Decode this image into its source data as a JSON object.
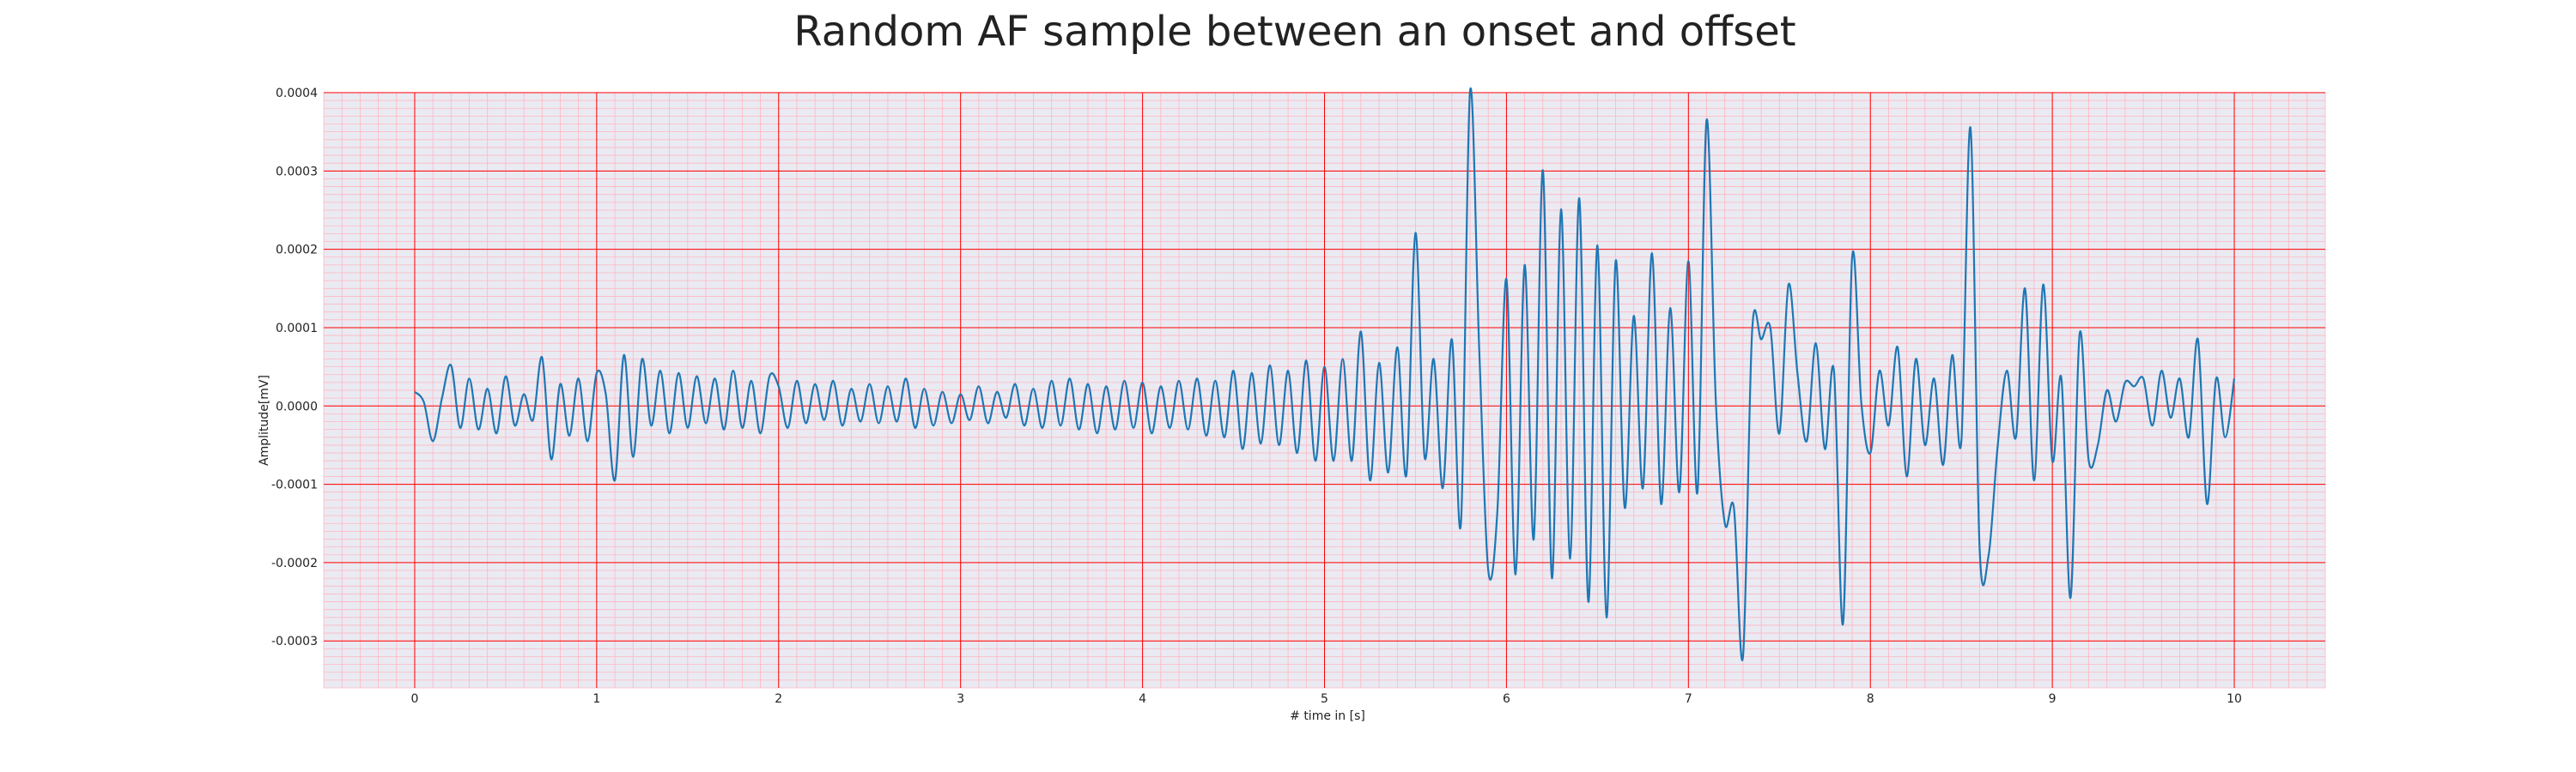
{
  "chart_data": {
    "type": "line",
    "title": "Random AF sample between an onset and offset",
    "xlabel": "# time in [s]",
    "ylabel": "Amplitude[mV]",
    "xlim": [
      -0.5,
      10.5
    ],
    "ylim": [
      -0.00036,
      0.0004
    ],
    "x_ticks": [
      0,
      1,
      2,
      3,
      4,
      5,
      6,
      7,
      8,
      9,
      10
    ],
    "x_tick_labels": [
      "0",
      "1",
      "2",
      "3",
      "4",
      "5",
      "6",
      "7",
      "8",
      "9",
      "10"
    ],
    "y_ticks": [
      0.0004,
      0.0003,
      0.0002,
      0.0001,
      0.0,
      -0.0001,
      -0.0002,
      -0.0003
    ],
    "y_tick_labels": [
      "0.0004",
      "0.0003",
      "0.0002",
      "0.0001",
      "0.0000",
      "-0.0001",
      "-0.0002",
      "-0.0003"
    ],
    "grid": true,
    "minor_grid": true,
    "colors": {
      "plot_background": "#eaeaf2",
      "major_grid": "#ff0000",
      "minor_grid": "#ffb6c1",
      "line": "#1f77b4"
    },
    "series": [
      {
        "x": [
          0.0,
          0.05,
          0.1,
          0.15,
          0.2,
          0.25,
          0.3,
          0.35,
          0.4,
          0.45,
          0.5,
          0.55,
          0.6,
          0.65,
          0.7,
          0.75,
          0.8,
          0.85,
          0.9,
          0.95,
          1.0,
          1.05,
          1.1,
          1.15,
          1.2,
          1.25,
          1.3,
          1.35,
          1.4,
          1.45,
          1.5,
          1.55,
          1.6,
          1.65,
          1.7,
          1.75,
          1.8,
          1.85,
          1.9,
          1.95,
          2.0,
          2.05,
          2.1,
          2.15,
          2.2,
          2.25,
          2.3,
          2.35,
          2.4,
          2.45,
          2.5,
          2.55,
          2.6,
          2.65,
          2.7,
          2.75,
          2.8,
          2.85,
          2.9,
          2.95,
          3.0,
          3.05,
          3.1,
          3.15,
          3.2,
          3.25,
          3.3,
          3.35,
          3.4,
          3.45,
          3.5,
          3.55,
          3.6,
          3.65,
          3.7,
          3.75,
          3.8,
          3.85,
          3.9,
          3.95,
          4.0,
          4.05,
          4.1,
          4.15,
          4.2,
          4.25,
          4.3,
          4.35,
          4.4,
          4.45,
          4.5,
          4.55,
          4.6,
          4.65,
          4.7,
          4.75,
          4.8,
          4.85,
          4.9,
          4.95,
          5.0,
          5.05,
          5.1,
          5.15,
          5.2,
          5.25,
          5.3,
          5.35,
          5.4,
          5.45,
          5.5,
          5.55,
          5.6,
          5.65,
          5.7,
          5.75,
          5.8,
          5.85,
          5.9,
          5.95,
          6.0,
          6.05,
          6.1,
          6.15,
          6.2,
          6.25,
          6.3,
          6.35,
          6.4,
          6.45,
          6.5,
          6.55,
          6.6,
          6.65,
          6.7,
          6.75,
          6.8,
          6.85,
          6.9,
          6.95,
          7.0,
          7.05,
          7.1,
          7.15,
          7.2,
          7.25,
          7.3,
          7.35,
          7.4,
          7.45,
          7.5,
          7.55,
          7.6,
          7.65,
          7.7,
          7.75,
          7.8,
          7.85,
          7.9,
          7.95,
          8.0,
          8.05,
          8.1,
          8.15,
          8.2,
          8.25,
          8.3,
          8.35,
          8.4,
          8.45,
          8.5,
          8.55,
          8.6,
          8.65,
          8.7,
          8.75,
          8.8,
          8.85,
          8.9,
          8.95,
          9.0,
          9.05,
          9.1,
          9.15,
          9.2,
          9.25,
          9.3,
          9.35,
          9.4,
          9.45,
          9.5,
          9.55,
          9.6,
          9.65,
          9.7,
          9.75,
          9.8,
          9.85,
          9.9,
          9.95,
          10.0
        ],
        "y": [
          1.8e-05,
          5e-06,
          -4.5e-05,
          1e-05,
          5.2e-05,
          -2.8e-05,
          3.5e-05,
          -3e-05,
          2.2e-05,
          -3.5e-05,
          3.8e-05,
          -2.5e-05,
          1.5e-05,
          -1.8e-05,
          6.2e-05,
          -6.8e-05,
          2.8e-05,
          -3.8e-05,
          3.5e-05,
          -4.5e-05,
          4.2e-05,
          1.5e-05,
          -9.5e-05,
          6.5e-05,
          -6.5e-05,
          6e-05,
          -2.5e-05,
          4.5e-05,
          -3.5e-05,
          4.2e-05,
          -2.8e-05,
          3.8e-05,
          -2.2e-05,
          3.5e-05,
          -3e-05,
          4.5e-05,
          -2.8e-05,
          3.2e-05,
          -3.5e-05,
          3.8e-05,
          2.5e-05,
          -2.8e-05,
          3.2e-05,
          -2.2e-05,
          2.8e-05,
          -1.8e-05,
          3.2e-05,
          -2.5e-05,
          2.2e-05,
          -2e-05,
          2.8e-05,
          -2.2e-05,
          2.5e-05,
          -2e-05,
          3.5e-05,
          -2.8e-05,
          2.2e-05,
          -2.5e-05,
          1.8e-05,
          -2.2e-05,
          1.5e-05,
          -1.8e-05,
          2.5e-05,
          -2.2e-05,
          1.8e-05,
          -1.5e-05,
          2.8e-05,
          -2.5e-05,
          2.2e-05,
          -2.8e-05,
          3.2e-05,
          -2.5e-05,
          3.5e-05,
          -3e-05,
          2.8e-05,
          -3.5e-05,
          2.5e-05,
          -3e-05,
          3.2e-05,
          -2.8e-05,
          3e-05,
          -3.5e-05,
          2.5e-05,
          -2.8e-05,
          3.2e-05,
          -3e-05,
          3.5e-05,
          -3.8e-05,
          3.2e-05,
          -4e-05,
          4.5e-05,
          -5.5e-05,
          4.2e-05,
          -4.8e-05,
          5.2e-05,
          -5e-05,
          4.5e-05,
          -6e-05,
          5.8e-05,
          -7e-05,
          5e-05,
          -7e-05,
          6e-05,
          -7e-05,
          9.5e-05,
          -9.5e-05,
          5.5e-05,
          -8.5e-05,
          7.5e-05,
          -8.8e-05,
          0.000221,
          -6.5e-05,
          6e-05,
          -0.000105,
          8.5e-05,
          -0.00015,
          0.000402,
          7.5e-05,
          -0.00021,
          -0.000135,
          0.000162,
          -0.000215,
          0.00018,
          -0.00017,
          0.000301,
          -0.00022,
          0.000251,
          -0.000195,
          0.000265,
          -0.00025,
          0.000205,
          -0.00027,
          0.000185,
          -0.00013,
          0.000115,
          -0.000105,
          0.000195,
          -0.000125,
          0.000125,
          -0.00011,
          0.000185,
          -0.00011,
          0.000365,
          1e-05,
          -0.00015,
          -0.00013,
          -0.00032,
          9.5e-05,
          8.5e-05,
          0.0001,
          -3.5e-05,
          0.000155,
          4e-05,
          -4.5e-05,
          8e-05,
          -5.5e-05,
          4.5e-05,
          -0.000278,
          0.00019,
          5e-06,
          -6e-05,
          4.5e-05,
          -2.5e-05,
          7.5e-05,
          -9e-05,
          6e-05,
          -5e-05,
          3.5e-05,
          -7.5e-05,
          6.5e-05,
          -4.5e-05,
          0.000355,
          -0.00018,
          -0.00019,
          -5e-05,
          4.5e-05,
          -4e-05,
          0.00015,
          -9.5e-05,
          0.000155,
          -7e-05,
          3.5e-05,
          -0.000245,
          9.2e-05,
          -7e-05,
          -5e-05,
          2e-05,
          -2e-05,
          3e-05,
          2.5e-05,
          3.5e-05,
          -2.5e-05,
          4.5e-05,
          -1.5e-05,
          3.5e-05,
          -4e-05,
          8.5e-05,
          -0.000125,
          3.5e-05,
          -4e-05,
          3.5e-05
        ]
      }
    ]
  }
}
